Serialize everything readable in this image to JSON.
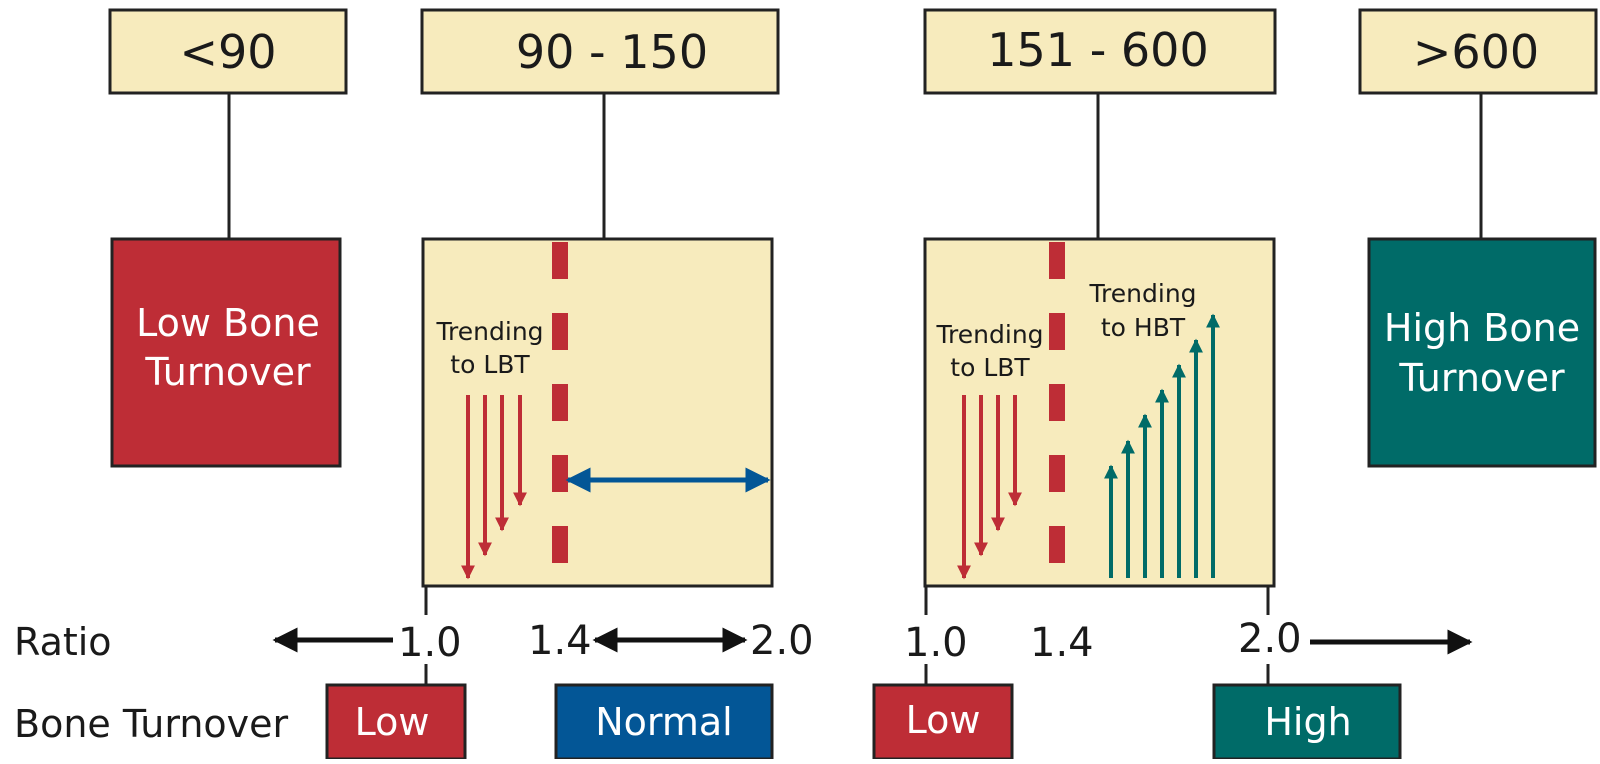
{
  "ranges": [
    {
      "label": "<90"
    },
    {
      "label": "90 - 150"
    },
    {
      "label": "151 - 600"
    },
    {
      "label": ">600"
    }
  ],
  "boxes": {
    "low": {
      "line1": "Low Bone",
      "line2": "Turnover"
    },
    "high": {
      "line1": "High Bone",
      "line2": "Turnover"
    },
    "box2": {
      "trend1": "Trending",
      "trend2": "to LBT"
    },
    "box3": {
      "trendLow1": "Trending",
      "trendLow2": "to LBT",
      "trendHigh1": "Trending",
      "trendHigh2": "to HBT"
    }
  },
  "axis": {
    "title": "Ratio",
    "ticks": [
      "1.0",
      "1.4",
      "2.0",
      "1.0",
      "1.4",
      "2.0"
    ]
  },
  "turnover": {
    "title": "Bone Turnover",
    "labels": [
      "Low",
      "Normal",
      "Low",
      "High"
    ]
  },
  "colors": {
    "red": "#be2d36",
    "teal": "#006b68",
    "blue": "#035696",
    "cream": "#f7ebbd",
    "outline": "#222222"
  }
}
